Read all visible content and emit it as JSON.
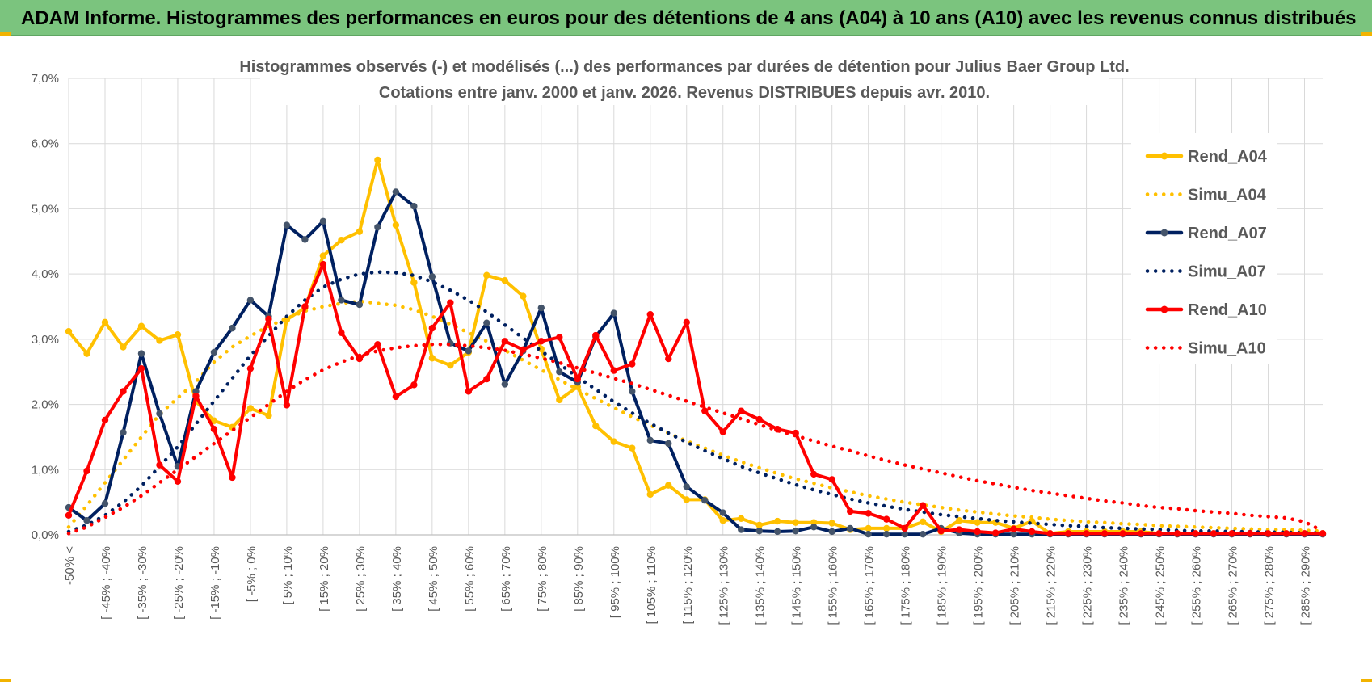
{
  "header": {
    "title": "ADAM Informe. Histogrammes des performances en euros pour des détentions de 4 ans (A04) à 10 ans (A10) avec les revenus connus distribués"
  },
  "chart_data": {
    "type": "line",
    "title": "Histogrammes observés (-) et modélisés (...) des performances par durées de détention pour Julius Baer Group Ltd.",
    "subtitle": "Cotations entre janv. 2000 et janv. 2026. Revenus DISTRIBUES depuis avr. 2010.",
    "xlabel": "",
    "ylabel": "",
    "ylim": [
      0,
      7
    ],
    "y_ticks": [
      "0,0%",
      "1,0%",
      "2,0%",
      "3,0%",
      "4,0%",
      "5,0%",
      "6,0%",
      "7,0%"
    ],
    "grid": true,
    "legend_position": "right",
    "x_tick_labels": [
      "-50% <",
      "[ -45% ; -40%",
      "[ -35% ; -30%",
      "[ -25% ; -20%",
      "[ -15% ; -10%",
      "[ -5% ; 0%",
      "[ 5% ; 10%",
      "[ 15% ; 20%",
      "[ 25% ; 30%",
      "[ 35% ; 40%",
      "[ 45% ; 50%",
      "[ 55% ; 60%",
      "[ 65% ; 70%",
      "[ 75% ; 80%",
      "[ 85% ; 90%",
      "[ 95% ; 100%",
      "[ 105% ; 110%",
      "[ 115% ; 120%",
      "[ 125% ; 130%",
      "[ 135% ; 140%",
      "[ 145% ; 150%",
      "[ 155% ; 160%",
      "[ 165% ; 170%",
      "[ 175% ; 180%",
      "[ 185% ; 190%",
      "[ 195% ; 200%",
      "[ 205% ; 210%",
      "[ 215% ; 220%",
      "[ 225% ; 230%",
      "[ 235% ; 240%",
      "[ 245% ; 250%",
      "[ 255% ; 260%",
      "[ 265% ; 270%",
      "[ 275% ; 280%",
      "[ 285% ; 290%"
    ],
    "series": [
      {
        "name": "Rend_A04",
        "style": "solid",
        "markers": true,
        "color": "#ffc000",
        "values": [
          3.12,
          2.78,
          3.26,
          2.88,
          3.2,
          2.98,
          3.07,
          2.05,
          1.75,
          1.65,
          1.94,
          1.83,
          3.3,
          3.48,
          4.28,
          4.52,
          4.65,
          5.75,
          4.75,
          3.87,
          2.71,
          2.6,
          2.8,
          3.98,
          3.9,
          3.66,
          2.85,
          2.07,
          2.27,
          1.67,
          1.43,
          1.33,
          0.62,
          0.76,
          0.54,
          0.54,
          0.22,
          0.25,
          0.15,
          0.21,
          0.19,
          0.19,
          0.18,
          0.08,
          0.1,
          0.1,
          0.1,
          0.2,
          0.05,
          0.22,
          0.19,
          0.19,
          0.1,
          0.21,
          0.02,
          0.05,
          0.05,
          0.05,
          0.05,
          0.05,
          0.02,
          0.02,
          0.02,
          0.02,
          0.02,
          0.02,
          0.02,
          0.02,
          0.02,
          0.02
        ]
      },
      {
        "name": "Simu_A04",
        "style": "dotted",
        "markers": false,
        "color": "#ffc000",
        "values": [
          0.12,
          0.45,
          0.8,
          1.15,
          1.5,
          1.85,
          2.1,
          2.35,
          2.65,
          2.88,
          3.05,
          3.2,
          3.32,
          3.43,
          3.5,
          3.55,
          3.58,
          3.55,
          3.52,
          3.45,
          3.35,
          3.23,
          3.1,
          2.97,
          2.83,
          2.68,
          2.53,
          2.38,
          2.23,
          2.09,
          1.95,
          1.81,
          1.68,
          1.56,
          1.44,
          1.33,
          1.22,
          1.12,
          1.03,
          0.94,
          0.86,
          0.79,
          0.72,
          0.66,
          0.6,
          0.55,
          0.5,
          0.46,
          0.42,
          0.38,
          0.35,
          0.32,
          0.29,
          0.27,
          0.24,
          0.22,
          0.2,
          0.19,
          0.17,
          0.16,
          0.14,
          0.13,
          0.12,
          0.11,
          0.1,
          0.09,
          0.08,
          0.08,
          0.07,
          0.06
        ]
      },
      {
        "name": "Rend_A07",
        "style": "solid",
        "markers": true,
        "color": "#002060",
        "values": [
          0.42,
          0.22,
          0.48,
          1.57,
          2.78,
          1.86,
          1.05,
          2.2,
          2.8,
          3.17,
          3.6,
          3.35,
          4.75,
          4.53,
          4.81,
          3.6,
          3.53,
          4.72,
          5.26,
          5.04,
          3.96,
          2.94,
          2.82,
          3.25,
          2.31,
          2.82,
          3.48,
          2.5,
          2.34,
          3.04,
          3.4,
          2.2,
          1.45,
          1.4,
          0.74,
          0.53,
          0.34,
          0.08,
          0.06,
          0.05,
          0.06,
          0.12,
          0.05,
          0.1,
          0.01,
          0.01,
          0.01,
          0.01,
          0.1,
          0.03,
          0.01,
          0.01,
          0.01,
          0.01,
          0.01,
          0.01,
          0.01,
          0.01,
          0.01,
          0.01,
          0.01,
          0.01,
          0.01,
          0.01,
          0.01,
          0.01,
          0.01,
          0.01,
          0.01,
          0.01
        ]
      },
      {
        "name": "Simu_A07",
        "style": "dotted",
        "markers": false,
        "color": "#002060",
        "values": [
          0.05,
          0.15,
          0.3,
          0.5,
          0.75,
          1.05,
          1.35,
          1.7,
          2.05,
          2.4,
          2.75,
          3.05,
          3.35,
          3.6,
          3.8,
          3.92,
          4.0,
          4.03,
          4.02,
          3.98,
          3.88,
          3.75,
          3.6,
          3.42,
          3.22,
          3.02,
          2.82,
          2.62,
          2.42,
          2.23,
          2.04,
          1.87,
          1.71,
          1.56,
          1.42,
          1.29,
          1.17,
          1.05,
          0.95,
          0.86,
          0.77,
          0.69,
          0.62,
          0.55,
          0.49,
          0.44,
          0.39,
          0.35,
          0.31,
          0.28,
          0.25,
          0.22,
          0.2,
          0.18,
          0.16,
          0.14,
          0.13,
          0.11,
          0.1,
          0.09,
          0.08,
          0.07,
          0.06,
          0.06,
          0.05,
          0.05,
          0.04,
          0.04,
          0.03,
          0.03
        ]
      },
      {
        "name": "Rend_A10",
        "style": "solid",
        "markers": true,
        "color": "#ff0000",
        "values": [
          0.3,
          0.98,
          1.76,
          2.2,
          2.55,
          1.07,
          0.82,
          2.13,
          1.62,
          0.88,
          2.55,
          3.31,
          1.99,
          3.5,
          4.15,
          3.1,
          2.7,
          2.92,
          2.12,
          2.3,
          3.17,
          3.56,
          2.2,
          2.39,
          2.97,
          2.84,
          2.97,
          3.03,
          2.39,
          3.06,
          2.52,
          2.62,
          3.38,
          2.7,
          3.26,
          1.9,
          1.58,
          1.9,
          1.77,
          1.62,
          1.56,
          0.93,
          0.85,
          0.36,
          0.33,
          0.24,
          0.1,
          0.45,
          0.06,
          0.08,
          0.05,
          0.03,
          0.09,
          0.05,
          0.02,
          0.02,
          0.02,
          0.02,
          0.02,
          0.02,
          0.02,
          0.02,
          0.02,
          0.02,
          0.02,
          0.02,
          0.02,
          0.02,
          0.02,
          0.02
        ]
      },
      {
        "name": "Simu_A10",
        "style": "dotted",
        "markers": false,
        "color": "#ff0000",
        "values": [
          0.02,
          0.12,
          0.27,
          0.42,
          0.6,
          0.8,
          1.0,
          1.2,
          1.4,
          1.6,
          1.8,
          2.0,
          2.2,
          2.38,
          2.53,
          2.65,
          2.75,
          2.82,
          2.87,
          2.9,
          2.92,
          2.92,
          2.9,
          2.87,
          2.83,
          2.77,
          2.71,
          2.64,
          2.56,
          2.48,
          2.4,
          2.32,
          2.23,
          2.14,
          2.05,
          1.96,
          1.87,
          1.78,
          1.69,
          1.6,
          1.52,
          1.44,
          1.36,
          1.29,
          1.21,
          1.14,
          1.07,
          1.01,
          0.95,
          0.89,
          0.83,
          0.78,
          0.73,
          0.68,
          0.64,
          0.6,
          0.56,
          0.52,
          0.49,
          0.45,
          0.42,
          0.4,
          0.37,
          0.35,
          0.33,
          0.3,
          0.28,
          0.26,
          0.2,
          0.06
        ]
      }
    ]
  }
}
